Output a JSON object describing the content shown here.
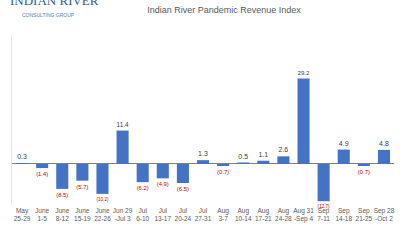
{
  "chart_data": {
    "type": "bar",
    "title": "Indian River Pandemic Revenue Index",
    "categories": [
      "May 25-29",
      "June 1-5",
      "June 8-12",
      "June 15-19",
      "June 22-26",
      "Jun 29 -Jul 3",
      "Jul 6-10",
      "Jul 13-17",
      "Jul 20-24",
      "Jul 27-31",
      "Aug 3-7",
      "Aug 10-14",
      "Aug 17-21",
      "Aug 24-28",
      "Aug 31 -Sep 4",
      "Sep 7-11",
      "Sep 14-18",
      "Sep 21-25",
      "Sep 28 -Oct 2"
    ],
    "values": [
      0.3,
      -1.4,
      -8.5,
      -5.7,
      -10.2,
      11.4,
      -6.2,
      -4.9,
      -6.5,
      1.3,
      -0.7,
      0.5,
      1.1,
      2.6,
      29.2,
      -12.7,
      4.9,
      -0.7,
      4.8
    ],
    "value_labels": [
      "0.3",
      "(1.4)",
      "(8.5)",
      "(5.7)",
      "(10.2)",
      "11.4",
      "(6.2)",
      "(4.9)",
      "(6.5)",
      "1.3",
      "(0.7)",
      "0.5",
      "1.1",
      "2.6",
      "29.2",
      "(12.7)",
      "4.9",
      "(0.7)",
      "4.8"
    ],
    "color": "#4472c4",
    "ylim": [
      -14,
      44
    ],
    "grid": false,
    "data_labels": true,
    "tick_labels": "x",
    "logo": {
      "name": "INDIAN RIVER",
      "subtitle": "CONSULTING GROUP"
    }
  }
}
